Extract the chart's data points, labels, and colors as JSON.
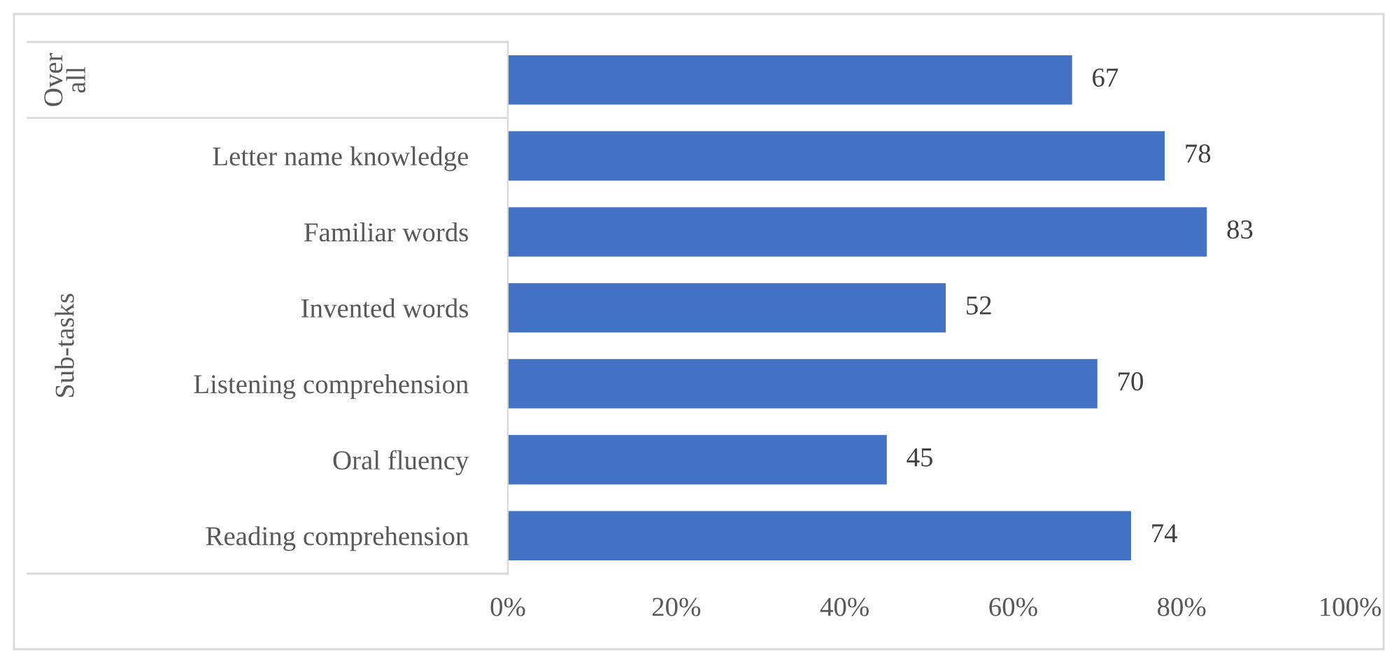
{
  "chart_data": {
    "type": "bar",
    "orientation": "horizontal",
    "categories": [
      null,
      "Letter name knowledge",
      "Familiar words",
      "Invented words",
      "Listening comprehension",
      "Oral fluency",
      "Reading comprehension"
    ],
    "values": [
      67,
      78,
      83,
      52,
      70,
      45,
      74
    ],
    "color": "#4472c4",
    "xlim": [
      0,
      100
    ],
    "xticks": [
      {
        "value": 0,
        "label": "0%"
      },
      {
        "value": 20,
        "label": "20%"
      },
      {
        "value": 40,
        "label": "40%"
      },
      {
        "value": 60,
        "label": "60%"
      },
      {
        "value": 80,
        "label": "80%"
      },
      {
        "value": 100,
        "label": "100%"
      }
    ],
    "data_labels": true,
    "grid": false,
    "legend": false,
    "annotations": [
      "Over\nall",
      "Sub-tasks"
    ]
  }
}
